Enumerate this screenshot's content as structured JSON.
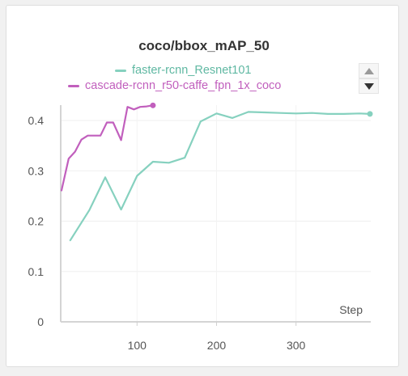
{
  "chart_data": {
    "type": "line",
    "title": "coco/bbox_mAP_50",
    "xlabel": "Step",
    "ylabel": "",
    "xlim": [
      5,
      395
    ],
    "ylim": [
      0,
      0.43
    ],
    "x_ticks": [
      100,
      200,
      300
    ],
    "y_ticks": [
      0,
      0.1,
      0.2,
      0.3,
      0.4
    ],
    "x_tick_labels": [
      "100",
      "200",
      "300"
    ],
    "y_tick_labels": [
      "0",
      "0.1",
      "0.2",
      "0.3",
      "0.4"
    ],
    "grid": true,
    "legend_position": "top",
    "series": [
      {
        "name": "faster-rcnn_Resnet101",
        "color": "#86d1bf",
        "x": [
          16,
          40,
          60,
          80,
          100,
          120,
          140,
          160,
          180,
          200,
          220,
          240,
          260,
          280,
          300,
          320,
          340,
          360,
          380,
          393
        ],
        "y": [
          0.162,
          0.222,
          0.287,
          0.223,
          0.29,
          0.318,
          0.316,
          0.326,
          0.398,
          0.414,
          0.405,
          0.417,
          0.416,
          0.415,
          0.414,
          0.415,
          0.413,
          0.413,
          0.414,
          0.413
        ]
      },
      {
        "name": "cascade-rcnn_r50-caffe_fpn_1x_coco",
        "color": "#c15fbd",
        "x": [
          5,
          14,
          22,
          30,
          38,
          46,
          54,
          62,
          70,
          80,
          88,
          96,
          104,
          112,
          120
        ],
        "y": [
          0.261,
          0.324,
          0.338,
          0.362,
          0.37,
          0.37,
          0.37,
          0.396,
          0.396,
          0.361,
          0.427,
          0.422,
          0.427,
          0.428,
          0.43
        ]
      }
    ]
  },
  "ui": {
    "scroll_up_icon": "triangle-up-icon",
    "scroll_down_icon": "triangle-down-icon"
  }
}
